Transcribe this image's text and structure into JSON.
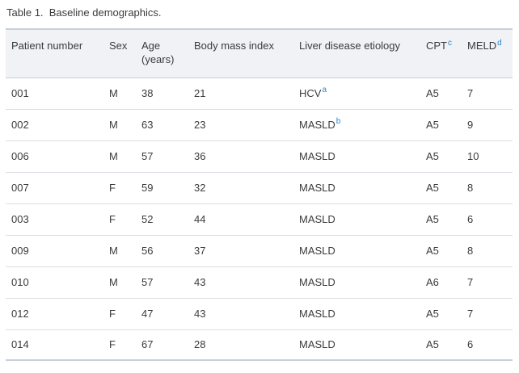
{
  "page": {
    "title": "Table 1.  Baseline demographics."
  },
  "colors": {
    "footnote_link_blue": "#2d87c8",
    "header_background": "#f0f2f6",
    "border_strong": "#c8cfd8",
    "border_light": "#dadde2",
    "text": "#3b3b3b"
  },
  "table": {
    "columns": [
      {
        "label": "Patient number",
        "sup": ""
      },
      {
        "label": "Sex",
        "sup": ""
      },
      {
        "label": "Age (years)",
        "sup": ""
      },
      {
        "label": "Body mass index",
        "sup": ""
      },
      {
        "label": "Liver disease etiology",
        "sup": ""
      },
      {
        "label": "CPT",
        "sup": "c"
      },
      {
        "label": "MELD",
        "sup": "d"
      }
    ],
    "rows": [
      {
        "patient_number": "001",
        "sex": "M",
        "age": "38",
        "body_mass_index": "21",
        "etiology": "HCV",
        "etiology_sup": "a",
        "cpt": "A5",
        "meld": "7"
      },
      {
        "patient_number": "002",
        "sex": "M",
        "age": "63",
        "body_mass_index": "23",
        "etiology": "MASLD",
        "etiology_sup": "b",
        "cpt": "A5",
        "meld": "9"
      },
      {
        "patient_number": "006",
        "sex": "M",
        "age": "57",
        "body_mass_index": "36",
        "etiology": "MASLD",
        "etiology_sup": "",
        "cpt": "A5",
        "meld": "10"
      },
      {
        "patient_number": "007",
        "sex": "F",
        "age": "59",
        "body_mass_index": "32",
        "etiology": "MASLD",
        "etiology_sup": "",
        "cpt": "A5",
        "meld": "8"
      },
      {
        "patient_number": "003",
        "sex": "F",
        "age": "52",
        "body_mass_index": "44",
        "etiology": "MASLD",
        "etiology_sup": "",
        "cpt": "A5",
        "meld": "6"
      },
      {
        "patient_number": "009",
        "sex": "M",
        "age": "56",
        "body_mass_index": "37",
        "etiology": "MASLD",
        "etiology_sup": "",
        "cpt": "A5",
        "meld": "8"
      },
      {
        "patient_number": "010",
        "sex": "M",
        "age": "57",
        "body_mass_index": "43",
        "etiology": "MASLD",
        "etiology_sup": "",
        "cpt": "A6",
        "meld": "7"
      },
      {
        "patient_number": "012",
        "sex": "F",
        "age": "47",
        "body_mass_index": "43",
        "etiology": "MASLD",
        "etiology_sup": "",
        "cpt": "A5",
        "meld": "7"
      },
      {
        "patient_number": "014",
        "sex": "F",
        "age": "67",
        "body_mass_index": "28",
        "etiology": "MASLD",
        "etiology_sup": "",
        "cpt": "A5",
        "meld": "6"
      }
    ]
  }
}
